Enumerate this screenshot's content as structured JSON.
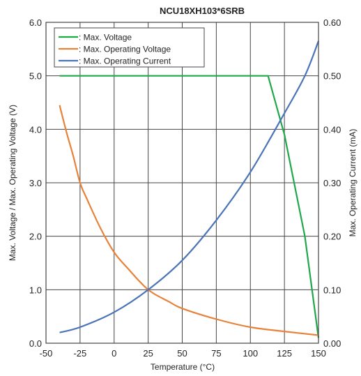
{
  "chart_data": {
    "type": "line",
    "title": "NCU18XH103*6SRB",
    "xlabel": "Temperature (°C)",
    "ylabel_left": "Max. Voltage / Max. Operating Voltage (V)",
    "ylabel_right": "Max. Operating Current (mA)",
    "xlim": [
      -50,
      150
    ],
    "ylim_left": [
      0,
      6
    ],
    "ylim_right": [
      0,
      0.6
    ],
    "x_ticks": [
      "-50",
      "-25",
      "0",
      "25",
      "50",
      "75",
      "100",
      "125",
      "150"
    ],
    "y_left_ticks": [
      "0.0",
      "1.0",
      "2.0",
      "3.0",
      "4.0",
      "5.0",
      "6.0"
    ],
    "y_right_ticks": [
      "0.00",
      "0.10",
      "0.20",
      "0.30",
      "0.40",
      "0.50",
      "0.60"
    ],
    "grid": true,
    "legend_position": "top-left",
    "series": [
      {
        "name": ": Max. Voltage",
        "axis": "left",
        "color": "#1fa84a",
        "x": [
          -40,
          0,
          50,
          100,
          113,
          125,
          140,
          150
        ],
        "y": [
          5.0,
          5.0,
          5.0,
          5.0,
          5.0,
          3.9,
          2.0,
          0.1
        ]
      },
      {
        "name": ": Max. Operating Voltage",
        "axis": "left",
        "color": "#e8823a",
        "x": [
          -40,
          -35,
          -30,
          -25,
          -20,
          -10,
          0,
          10,
          25,
          40,
          50,
          75,
          100,
          125,
          150
        ],
        "y": [
          4.45,
          3.95,
          3.5,
          3.0,
          2.7,
          2.15,
          1.7,
          1.4,
          1.0,
          0.78,
          0.65,
          0.45,
          0.3,
          0.22,
          0.15
        ]
      },
      {
        "name": ": Max. Operating Current",
        "axis": "right",
        "color": "#4a74b8",
        "x": [
          -40,
          -25,
          0,
          25,
          50,
          75,
          100,
          125,
          140,
          150
        ],
        "y": [
          0.02,
          0.03,
          0.058,
          0.1,
          0.155,
          0.23,
          0.32,
          0.43,
          0.5,
          0.565
        ]
      }
    ]
  }
}
